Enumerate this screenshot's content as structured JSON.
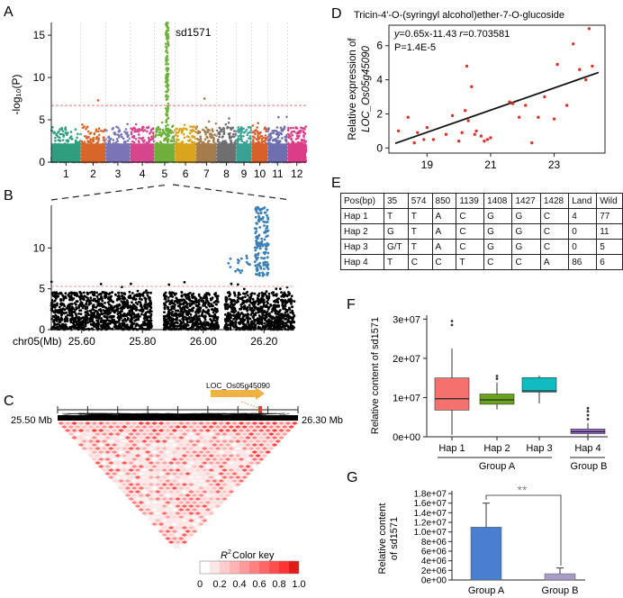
{
  "panels": {
    "A": "A",
    "B": "B",
    "C": "C",
    "D": "D",
    "E": "E",
    "F": "F",
    "G": "G"
  },
  "panel_a": {
    "peak_label": "sd1571",
    "ylabel": "-log₁₀(P)",
    "yticks": [
      "0",
      "5",
      "10",
      "15"
    ],
    "chromosomes": [
      "1",
      "2",
      "3",
      "4",
      "5",
      "6",
      "7",
      "8",
      "9",
      "10",
      "11",
      "12"
    ],
    "colors": [
      "#2f9e7e",
      "#d8662a",
      "#7b74b6",
      "#d6468f",
      "#6fb03c",
      "#d9a51f",
      "#a57d4d",
      "#6f6f6f",
      "#3aa195",
      "#d7602b",
      "#6e6fb0",
      "#dc3d88"
    ],
    "threshold": 6.7
  },
  "panel_b": {
    "yticks": [
      "0",
      "5",
      "10"
    ],
    "xaxis_prefix": "chr05(Mb)",
    "xticks": [
      "25.60",
      "25.80",
      "26.00",
      "26.20"
    ]
  },
  "panel_c": {
    "gene_label": "LOC_Os05g45090",
    "left_pos": "25.50 Mb",
    "right_pos": "26.30 Mb",
    "color_key_title": "R",
    "color_key_sup": "2",
    "color_key_suffix": " Color key",
    "color_key_ticks": [
      "0",
      "0.2",
      "0.4",
      "0.6",
      "0.8",
      "1.0"
    ]
  },
  "chart_data": [
    {
      "type": "scatter",
      "title": "Tricin-4'-O-(syringyl alcohol)ether-7-O-glucoside",
      "equation_y": "y",
      "equation_rest": "=0.65x-11.43  ",
      "equation_r": "r",
      "equation_r_val": "=0.703581",
      "pvalue": "P=1.4E-5",
      "ylabel_line1": "Relative expression of",
      "ylabel_line2": "LOC_Os05g45090",
      "xticks": [
        "19",
        "21",
        "23"
      ],
      "yticks": [
        "0",
        "2",
        "4",
        "6"
      ],
      "xlim": [
        17.8,
        24.6
      ],
      "ylim": [
        -0.3,
        7.2
      ],
      "fit": {
        "slope": 0.65,
        "intercept": -11.43
      },
      "x": [
        18.1,
        18.4,
        18.6,
        18.7,
        18.9,
        19.0,
        19.2,
        19.6,
        19.8,
        20.0,
        20.1,
        20.2,
        20.25,
        20.3,
        20.4,
        20.5,
        20.55,
        20.7,
        20.8,
        20.9,
        21.0,
        21.6,
        21.7,
        21.9,
        22.1,
        22.3,
        22.5,
        22.7,
        23.0,
        23.1,
        23.4,
        23.6,
        23.8,
        24.0,
        24.1,
        24.2
      ],
      "y": [
        1.0,
        1.8,
        0.3,
        0.9,
        0.5,
        1.2,
        0.5,
        0.8,
        1.9,
        0.4,
        0.9,
        2.2,
        4.8,
        1.6,
        3.6,
        0.8,
        1.0,
        0.7,
        0.4,
        0.5,
        0.6,
        2.7,
        2.6,
        1.8,
        2.5,
        0.3,
        1.8,
        3.0,
        1.7,
        4.9,
        2.5,
        6.1,
        4.6,
        4.0,
        7.0,
        4.8
      ]
    },
    {
      "type": "box",
      "ylabel": "Relative content of sd1571",
      "yticks": [
        "0e+00",
        "1e+07",
        "2e+07",
        "3e+07"
      ],
      "ylim": [
        0,
        31000000
      ],
      "categories": [
        "Hap 1",
        "Hap 2",
        "Hap 3",
        "Hap 4"
      ],
      "groups": [
        "Group  A",
        "Group  B"
      ],
      "colors": [
        "#f4716d",
        "#6aa31d",
        "#11bcc0",
        "#9a6bd3"
      ],
      "boxes": [
        {
          "min": 500000,
          "q1": 6800000,
          "median": 9700000,
          "q3": 15000000,
          "max": 22500000,
          "outliers": [
            28500000,
            29500000
          ]
        },
        {
          "min": 7000000,
          "q1": 8300000,
          "median": 9400000,
          "q3": 10900000,
          "max": 13800000,
          "outliers": [
            14800000,
            15500000
          ]
        },
        {
          "min": 8500000,
          "q1": 11400000,
          "median": 11700000,
          "q3": 15100000,
          "max": 15600000,
          "outliers": []
        },
        {
          "min": 0,
          "q1": 800000,
          "median": 1300000,
          "q3": 2000000,
          "max": 3500000,
          "outliers": [
            4500000,
            5500000,
            6500000,
            7300000
          ]
        }
      ]
    },
    {
      "type": "bar",
      "ylabel_line1": "Relative content",
      "ylabel_line2": "of sd1571",
      "categories": [
        "Group  A",
        "Group  B"
      ],
      "values": [
        11000000,
        1300000
      ],
      "errors": [
        5000000,
        1200000
      ],
      "colors": [
        "#4a7fd0",
        "#a79cc8"
      ],
      "significance": "**",
      "yticks": [
        "0e+00",
        "2e+06",
        "4e+06",
        "6e+06",
        "8e+06",
        "1.0e+07",
        "1.2e+07",
        "1.4e+07",
        "1.6e+07",
        "1.8e+07"
      ],
      "ylim": [
        0,
        18000000
      ]
    }
  ],
  "panel_e": {
    "header": [
      "Pos(bp)",
      "35",
      "574",
      "850",
      "1139",
      "1408",
      "1427",
      "1428",
      "Land",
      "Wild"
    ],
    "rows": [
      [
        "Hap 1",
        "T",
        "T",
        "A",
        "C",
        "G",
        "G",
        "C",
        "4",
        "77"
      ],
      [
        "Hap 2",
        "G",
        "T",
        "A",
        "C",
        "G",
        "G",
        "C",
        "0",
        "11"
      ],
      [
        "Hap 3",
        "G/T",
        "T",
        "A",
        "C",
        "G",
        "G",
        "C",
        "0",
        "5"
      ],
      [
        "Hap 4",
        "T",
        "C",
        "C",
        "T",
        "C",
        "C",
        "A",
        "86",
        "6"
      ]
    ]
  }
}
